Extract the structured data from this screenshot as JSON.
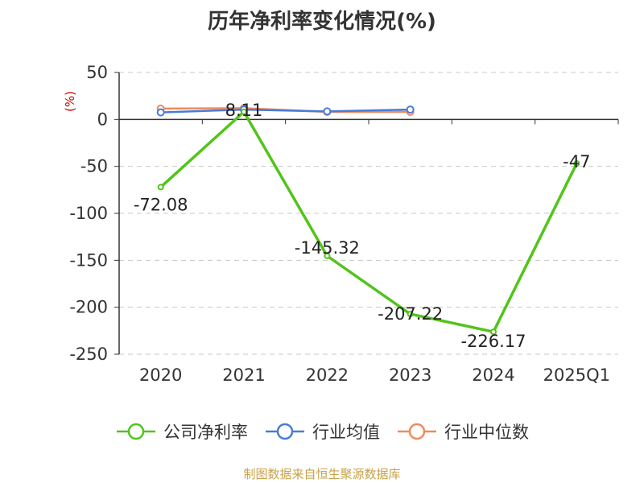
{
  "title": "历年净利率变化情况(%)",
  "source": "制图数据来自恒生聚源数据库",
  "chart_data": {
    "type": "line",
    "categories": [
      "2020",
      "2021",
      "2022",
      "2023",
      "2024",
      "2025Q1"
    ],
    "ylabel": "(%)",
    "ylim": [
      -250,
      50
    ],
    "yticks": [
      50,
      0,
      -50,
      -100,
      -150,
      -200,
      -250
    ],
    "grid": true,
    "legend_position": "bottom",
    "series": [
      {
        "name": "公司净利率",
        "color": "#52c41a",
        "values": [
          -72.08,
          8.11,
          -145.32,
          -207.22,
          -226.17,
          -47
        ],
        "labels": [
          "-72.08",
          "8.11",
          "-145.32",
          "-207.22",
          "-226.17",
          "-47"
        ]
      },
      {
        "name": "行业均值",
        "color": "#4a7bd6",
        "values": [
          7.5,
          10.5,
          8.5,
          10.5,
          null,
          null
        ]
      },
      {
        "name": "行业中位数",
        "color": "#f08a5d",
        "values": [
          11.5,
          12.0,
          8.0,
          8.0,
          null,
          null
        ]
      }
    ]
  }
}
